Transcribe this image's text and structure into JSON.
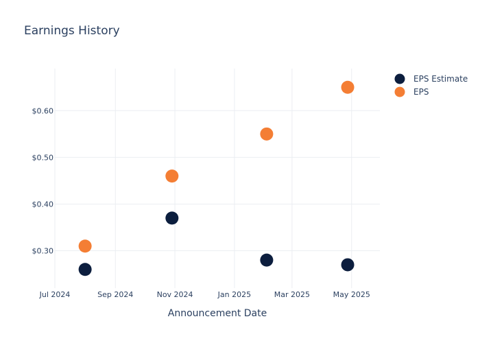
{
  "chart_data": {
    "type": "scatter",
    "title": "Earnings History",
    "xlabel": "Announcement Date",
    "ylabel": "",
    "x_range": [
      "2024-07-01",
      "2025-05-30"
    ],
    "x_ticks": [
      {
        "date": "2024-07-01",
        "label": "Jul 2024"
      },
      {
        "date": "2024-09-01",
        "label": "Sep 2024"
      },
      {
        "date": "2024-11-01",
        "label": "Nov 2024"
      },
      {
        "date": "2025-01-01",
        "label": "Jan 2025"
      },
      {
        "date": "2025-03-01",
        "label": "Mar 2025"
      },
      {
        "date": "2025-05-01",
        "label": "May 2025"
      }
    ],
    "ylim": [
      0.22,
      0.69
    ],
    "y_ticks": [
      {
        "value": 0.3,
        "label": "$0.30"
      },
      {
        "value": 0.4,
        "label": "$0.40"
      },
      {
        "value": 0.5,
        "label": "$0.50"
      },
      {
        "value": 0.6,
        "label": "$0.60"
      }
    ],
    "grid": true,
    "legend_position": "top-right",
    "series": [
      {
        "name": "EPS Estimate",
        "color": "#0c1e3e",
        "points": [
          {
            "x": "2024-08-01",
            "y": 0.26
          },
          {
            "x": "2024-10-29",
            "y": 0.37
          },
          {
            "x": "2025-02-03",
            "y": 0.28
          },
          {
            "x": "2025-04-27",
            "y": 0.27
          }
        ]
      },
      {
        "name": "EPS",
        "color": "#f47e34",
        "points": [
          {
            "x": "2024-08-01",
            "y": 0.31
          },
          {
            "x": "2024-10-29",
            "y": 0.46
          },
          {
            "x": "2025-02-03",
            "y": 0.55
          },
          {
            "x": "2025-04-27",
            "y": 0.65
          }
        ]
      }
    ]
  }
}
